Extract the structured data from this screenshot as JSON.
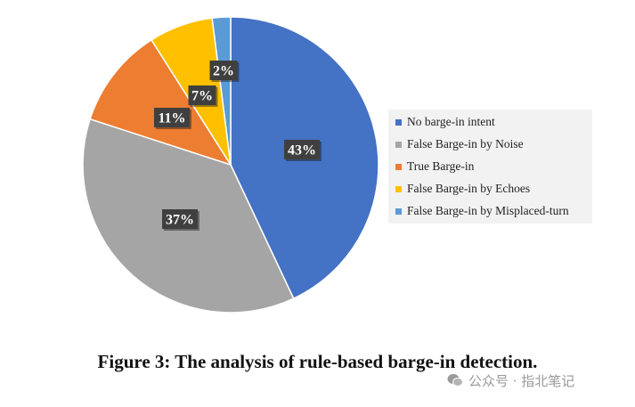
{
  "chart_data": {
    "type": "pie",
    "slices": [
      {
        "label": "No barge-in intent",
        "value": 43,
        "display": "43%",
        "color": "#4472c4"
      },
      {
        "label": "False Barge-in by Noise",
        "value": 37,
        "display": "37%",
        "color": "#a5a5a5"
      },
      {
        "label": "True Barge-in",
        "value": 11,
        "display": "11%",
        "color": "#ed7d31"
      },
      {
        "label": "False Barge-in by Echoes",
        "value": 7,
        "display": "7%",
        "color": "#ffc000"
      },
      {
        "label": "False Barge-in by Misplaced-turn",
        "value": 2,
        "display": "2%",
        "color": "#5b9bd5"
      }
    ],
    "start_angle_deg": 0,
    "direction": "clockwise",
    "legend_position": "right"
  },
  "caption": "Figure 3: The analysis of rule-based barge-in detection.",
  "watermark": "公众号 · 指北笔记"
}
